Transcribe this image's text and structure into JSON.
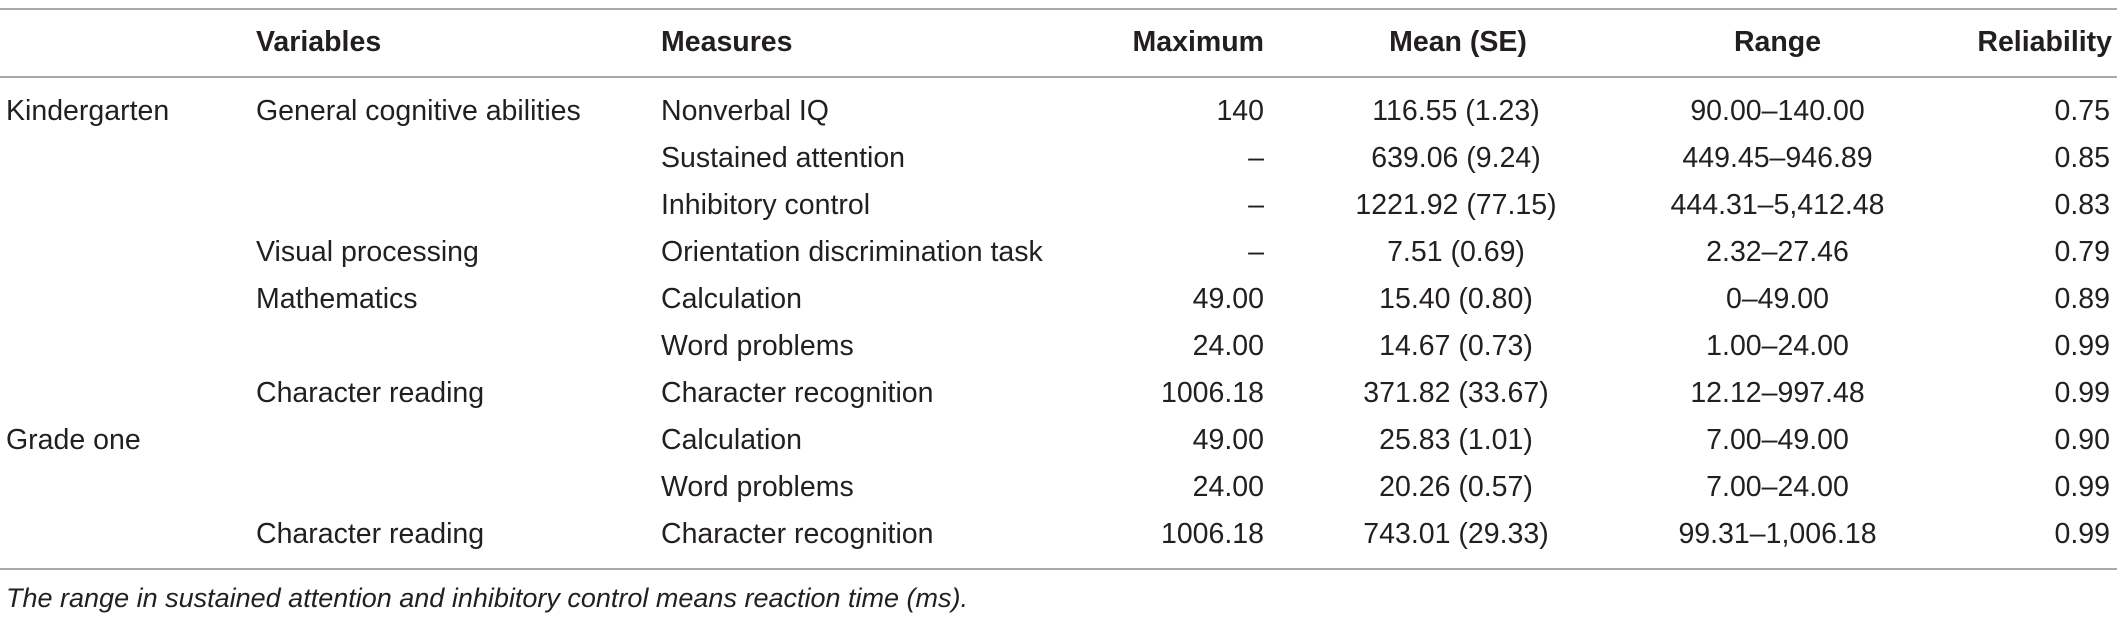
{
  "header": {
    "group": "",
    "variables": "Variables",
    "measures": "Measures",
    "maximum": "Maximum",
    "mean": "Mean (SE)",
    "range": "Range",
    "reliability": "Reliability"
  },
  "rows": [
    {
      "group": "Kindergarten",
      "variable": "General cognitive abilities",
      "measure": "Nonverbal IQ",
      "maximum": "140",
      "mean": "116.55 (1.23)",
      "range": "90.00–140.00",
      "reliability": "0.75"
    },
    {
      "group": "",
      "variable": "",
      "measure": "Sustained attention",
      "maximum": "–",
      "mean": "639.06 (9.24)",
      "range": "449.45–946.89",
      "reliability": "0.85"
    },
    {
      "group": "",
      "variable": "",
      "measure": "Inhibitory control",
      "maximum": "–",
      "mean": "1221.92 (77.15)",
      "range": "444.31–5,412.48",
      "reliability": "0.83"
    },
    {
      "group": "",
      "variable": "Visual processing",
      "measure": "Orientation discrimination task",
      "maximum": "–",
      "mean": "7.51 (0.69)",
      "range": "2.32–27.46",
      "reliability": "0.79"
    },
    {
      "group": "",
      "variable": "Mathematics",
      "measure": "Calculation",
      "maximum": "49.00",
      "mean": "15.40 (0.80)",
      "range": "0–49.00",
      "reliability": "0.89"
    },
    {
      "group": "",
      "variable": "",
      "measure": "Word problems",
      "maximum": "24.00",
      "mean": "14.67 (0.73)",
      "range": "1.00–24.00",
      "reliability": "0.99"
    },
    {
      "group": "",
      "variable": "Character reading",
      "measure": "Character recognition",
      "maximum": "1006.18",
      "mean": "371.82 (33.67)",
      "range": "12.12–997.48",
      "reliability": "0.99"
    },
    {
      "group": "Grade one",
      "variable": "",
      "measure": "Calculation",
      "maximum": "49.00",
      "mean": "25.83 (1.01)",
      "range": "7.00–49.00",
      "reliability": "0.90"
    },
    {
      "group": "",
      "variable": "",
      "measure": "Word problems",
      "maximum": "24.00",
      "mean": "20.26 (0.57)",
      "range": "7.00–24.00",
      "reliability": "0.99"
    },
    {
      "group": "",
      "variable": "Character reading",
      "measure": "Character recognition",
      "maximum": "1006.18",
      "mean": "743.01 (29.33)",
      "range": "99.31–1,006.18",
      "reliability": "0.99"
    }
  ],
  "footnote": "The range in sustained attention and inhibitory control means reaction time (ms)."
}
